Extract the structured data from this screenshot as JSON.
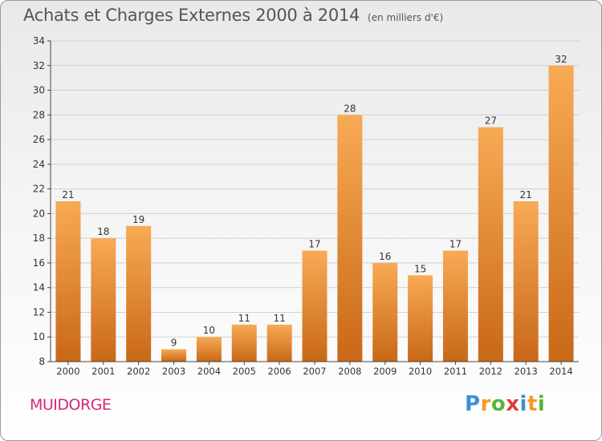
{
  "title": "Achats et Charges Externes 2000 à 2014",
  "unit": "(en milliers d'€)",
  "commune": "MUIDORGE",
  "brand": {
    "text": "Proxiti",
    "letters": [
      {
        "ch": "P",
        "color": "#3b8fd6"
      },
      {
        "ch": "r",
        "color": "#f39a1e"
      },
      {
        "ch": "o",
        "color": "#5ab53a"
      },
      {
        "ch": "x",
        "color": "#e23b3b"
      },
      {
        "ch": "i",
        "color": "#3b8fd6"
      },
      {
        "ch": "t",
        "color": "#f39a1e"
      },
      {
        "ch": "i",
        "color": "#5ab53a"
      }
    ]
  },
  "colors": {
    "bar_light": "#f7a650",
    "bar_dark": "#c96a1a",
    "grid": "#cccccc",
    "axis": "#444444"
  },
  "chart_data": {
    "type": "bar",
    "categories": [
      "2000",
      "2001",
      "2002",
      "2003",
      "2004",
      "2005",
      "2006",
      "2007",
      "2008",
      "2009",
      "2010",
      "2011",
      "2012",
      "2013",
      "2014"
    ],
    "values": [
      21,
      18,
      19,
      9,
      10,
      11,
      11,
      17,
      28,
      16,
      15,
      17,
      27,
      21,
      32
    ],
    "title": "Achats et Charges Externes 2000 à 2014",
    "xlabel": "",
    "ylabel": "",
    "ylim": [
      8,
      34
    ],
    "yticks": [
      8,
      10,
      12,
      14,
      16,
      18,
      20,
      22,
      24,
      26,
      28,
      30,
      32,
      34
    ],
    "grid": true,
    "data_labels": true
  }
}
